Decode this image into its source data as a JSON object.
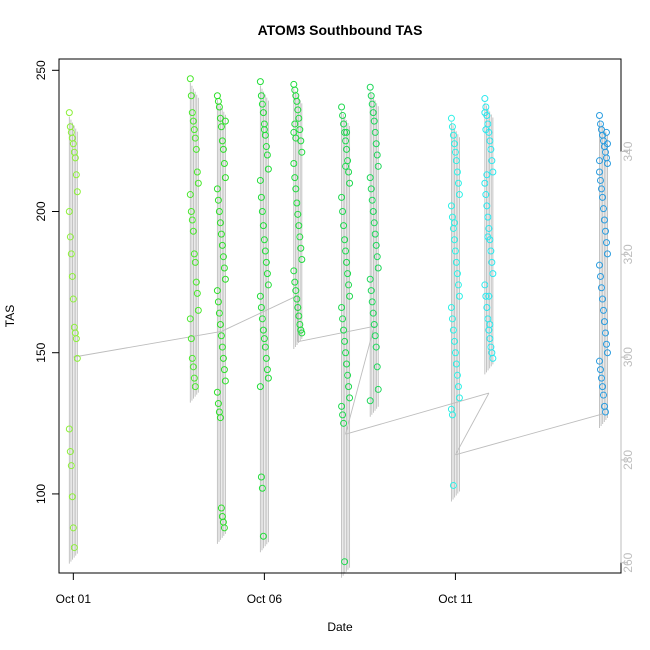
{
  "chart_data": {
    "type": "scatter",
    "title": "ATOM3 Southbound TAS",
    "xlabel": "Date",
    "ylabel": "TAS",
    "x_axis": {
      "type": "date",
      "ticks": [
        {
          "value": "2020-10-01",
          "label": "Oct 01"
        },
        {
          "value": "2020-10-06",
          "label": "Oct 06"
        },
        {
          "value": "2020-10-11",
          "label": "Oct 11"
        }
      ],
      "range": [
        "2020-09-30T15:00",
        "2020-10-15T08:00"
      ]
    },
    "y_axis": {
      "range": [
        72,
        254
      ],
      "ticks": [
        100,
        150,
        200,
        250
      ]
    },
    "y2_axis": {
      "range": [
        258,
        358
      ],
      "ticks": [
        260,
        280,
        300,
        320,
        340
      ],
      "color": "#bdbdbd"
    },
    "legend": "none",
    "grid": false,
    "marker": "open-circle",
    "color_scale": "green-cyan-blue by date",
    "secondary_line_color": "#bdbdbd",
    "series": [
      {
        "color": "#8df03a",
        "x": [
          "2020-10-01T00:00",
          "2020-10-01T00:00",
          "2020-10-01T00:00",
          "2020-10-01T00:00",
          "2020-10-01T00:00",
          "2020-10-01T00:00",
          "2020-10-01T00:00",
          "2020-10-01T00:00",
          "2020-10-01T00:00",
          "2020-10-01T00:00",
          "2020-10-01T00:00",
          "2020-10-01T00:00",
          "2020-10-01T00:00",
          "2020-10-01T00:00",
          "2020-10-01T00:00",
          "2020-10-01T00:00",
          "2020-10-01T00:00",
          "2020-10-01T00:00",
          "2020-10-01T00:00",
          "2020-10-01T00:00",
          "2020-10-01T00:00",
          "2020-10-01T00:00",
          "2020-10-01T00:00",
          "2020-10-01T00:00"
        ],
        "y": [
          235,
          230,
          228,
          226,
          224,
          221,
          219,
          213,
          207,
          200,
          191,
          185,
          177,
          169,
          159,
          157,
          155,
          148,
          123,
          115,
          110,
          99,
          88,
          81
        ]
      },
      {
        "color": "#4ae82d",
        "x": [
          "2020-10-04T04:00",
          "2020-10-04T04:00",
          "2020-10-04T04:00",
          "2020-10-04T04:00",
          "2020-10-04T04:00",
          "2020-10-04T04:00",
          "2020-10-04T04:00",
          "2020-10-04T04:00",
          "2020-10-04T04:00",
          "2020-10-04T04:00",
          "2020-10-04T04:00",
          "2020-10-04T04:00",
          "2020-10-04T04:00",
          "2020-10-04T04:00",
          "2020-10-04T04:00",
          "2020-10-04T04:00",
          "2020-10-04T04:00",
          "2020-10-04T04:00",
          "2020-10-04T04:00",
          "2020-10-04T04:00",
          "2020-10-04T04:00",
          "2020-10-04T04:00",
          "2020-10-04T04:00",
          "2020-10-04T04:00"
        ],
        "y": [
          247,
          241,
          235,
          232,
          229,
          226,
          222,
          214,
          210,
          206,
          200,
          197,
          193,
          185,
          182,
          175,
          171,
          165,
          162,
          155,
          148,
          145,
          141,
          138
        ]
      },
      {
        "color": "#2ee02a",
        "x": [
          "2020-10-04T21:00",
          "2020-10-04T21:00",
          "2020-10-04T21:00",
          "2020-10-04T21:00",
          "2020-10-04T21:00",
          "2020-10-04T21:00",
          "2020-10-04T21:00",
          "2020-10-04T21:00",
          "2020-10-04T21:00",
          "2020-10-04T21:00",
          "2020-10-04T21:00",
          "2020-10-04T21:00",
          "2020-10-04T21:00",
          "2020-10-04T21:00",
          "2020-10-04T21:00",
          "2020-10-04T21:00",
          "2020-10-04T21:00",
          "2020-10-04T21:00",
          "2020-10-04T21:00",
          "2020-10-04T21:00",
          "2020-10-04T21:00",
          "2020-10-04T21:00",
          "2020-10-04T21:00",
          "2020-10-04T21:00",
          "2020-10-04T21:00",
          "2020-10-04T21:00",
          "2020-10-04T21:00",
          "2020-10-04T21:00",
          "2020-10-04T21:00",
          "2020-10-04T21:00",
          "2020-10-04T21:00",
          "2020-10-04T21:00",
          "2020-10-04T21:00",
          "2020-10-04T21:00",
          "2020-10-04T21:00",
          "2020-10-04T21:00"
        ],
        "y": [
          241,
          239,
          237,
          233,
          230,
          225,
          222,
          217,
          212,
          208,
          204,
          200,
          196,
          192,
          188,
          184,
          180,
          176,
          172,
          168,
          164,
          160,
          156,
          152,
          148,
          144,
          140,
          136,
          132,
          129,
          127,
          95,
          92,
          90,
          88,
          232
        ]
      },
      {
        "color": "#22de39",
        "x": [
          "2020-10-06T00:00",
          "2020-10-06T00:00",
          "2020-10-06T00:00",
          "2020-10-06T00:00",
          "2020-10-06T00:00",
          "2020-10-06T00:00",
          "2020-10-06T00:00",
          "2020-10-06T00:00",
          "2020-10-06T00:00",
          "2020-10-06T00:00",
          "2020-10-06T00:00",
          "2020-10-06T00:00",
          "2020-10-06T00:00",
          "2020-10-06T00:00",
          "2020-10-06T00:00",
          "2020-10-06T00:00",
          "2020-10-06T00:00",
          "2020-10-06T00:00",
          "2020-10-06T00:00",
          "2020-10-06T00:00",
          "2020-10-06T00:00",
          "2020-10-06T00:00",
          "2020-10-06T00:00",
          "2020-10-06T00:00",
          "2020-10-06T00:00",
          "2020-10-06T00:00",
          "2020-10-06T00:00",
          "2020-10-06T00:00",
          "2020-10-06T00:00",
          "2020-10-06T00:00",
          "2020-10-06T00:00",
          "2020-10-06T00:00"
        ],
        "y": [
          246,
          241,
          238,
          235,
          231,
          227,
          223,
          220,
          215,
          211,
          205,
          200,
          195,
          190,
          186,
          182,
          178,
          174,
          170,
          166,
          162,
          158,
          155,
          152,
          148,
          144,
          141,
          138,
          106,
          102,
          85,
          229
        ]
      },
      {
        "color": "#20dc3e",
        "x": [
          "2020-10-06T21:00",
          "2020-10-06T21:00",
          "2020-10-06T21:00",
          "2020-10-06T21:00",
          "2020-10-06T21:00",
          "2020-10-06T21:00",
          "2020-10-06T21:00",
          "2020-10-06T21:00",
          "2020-10-06T21:00",
          "2020-10-06T21:00",
          "2020-10-06T21:00",
          "2020-10-06T21:00",
          "2020-10-06T21:00",
          "2020-10-06T21:00",
          "2020-10-06T21:00",
          "2020-10-06T21:00",
          "2020-10-06T21:00",
          "2020-10-06T21:00",
          "2020-10-06T21:00",
          "2020-10-06T21:00",
          "2020-10-06T21:00",
          "2020-10-06T21:00",
          "2020-10-06T21:00",
          "2020-10-06T21:00",
          "2020-10-06T21:00",
          "2020-10-06T21:00",
          "2020-10-06T21:00",
          "2020-10-06T21:00",
          "2020-10-06T21:00",
          "2020-10-06T21:00"
        ],
        "y": [
          245,
          243,
          241,
          239,
          236,
          233,
          229,
          225,
          221,
          217,
          212,
          208,
          203,
          199,
          195,
          191,
          187,
          183,
          179,
          175,
          172,
          169,
          166,
          163,
          160,
          158,
          157,
          228,
          231,
          226
        ]
      },
      {
        "color": "#1fd94f",
        "x": [
          "2020-10-08T03:00",
          "2020-10-08T03:00",
          "2020-10-08T03:00",
          "2020-10-08T03:00",
          "2020-10-08T03:00",
          "2020-10-08T03:00",
          "2020-10-08T03:00",
          "2020-10-08T03:00",
          "2020-10-08T03:00",
          "2020-10-08T03:00",
          "2020-10-08T03:00",
          "2020-10-08T03:00",
          "2020-10-08T03:00",
          "2020-10-08T03:00",
          "2020-10-08T03:00",
          "2020-10-08T03:00",
          "2020-10-08T03:00",
          "2020-10-08T03:00",
          "2020-10-08T03:00",
          "2020-10-08T03:00",
          "2020-10-08T03:00",
          "2020-10-08T03:00",
          "2020-10-08T03:00",
          "2020-10-08T03:00",
          "2020-10-08T03:00",
          "2020-10-08T03:00",
          "2020-10-08T03:00",
          "2020-10-08T03:00",
          "2020-10-08T03:00",
          "2020-10-08T03:00",
          "2020-10-08T03:00",
          "2020-10-08T03:00",
          "2020-10-08T03:00"
        ],
        "y": [
          237,
          234,
          231,
          228,
          225,
          222,
          218,
          214,
          210,
          205,
          200,
          195,
          190,
          186,
          182,
          178,
          174,
          170,
          166,
          162,
          158,
          154,
          150,
          146,
          142,
          138,
          134,
          131,
          128,
          125,
          76,
          216,
          228
        ]
      },
      {
        "color": "#1fd75a",
        "x": [
          "2020-10-08T21:00",
          "2020-10-08T21:00",
          "2020-10-08T21:00",
          "2020-10-08T21:00",
          "2020-10-08T21:00",
          "2020-10-08T21:00",
          "2020-10-08T21:00",
          "2020-10-08T21:00",
          "2020-10-08T21:00",
          "2020-10-08T21:00",
          "2020-10-08T21:00",
          "2020-10-08T21:00",
          "2020-10-08T21:00",
          "2020-10-08T21:00",
          "2020-10-08T21:00",
          "2020-10-08T21:00",
          "2020-10-08T21:00",
          "2020-10-08T21:00",
          "2020-10-08T21:00",
          "2020-10-08T21:00",
          "2020-10-08T21:00",
          "2020-10-08T21:00",
          "2020-10-08T21:00",
          "2020-10-08T21:00",
          "2020-10-08T21:00",
          "2020-10-08T21:00",
          "2020-10-08T21:00",
          "2020-10-08T21:00"
        ],
        "y": [
          244,
          241,
          238,
          235,
          232,
          228,
          224,
          220,
          216,
          212,
          208,
          204,
          200,
          196,
          192,
          188,
          184,
          180,
          176,
          172,
          168,
          164,
          160,
          156,
          152,
          145,
          137,
          133
        ]
      },
      {
        "color": "#2ef0e6",
        "x": [
          "2020-10-11T00:00",
          "2020-10-11T00:00",
          "2020-10-11T00:00",
          "2020-10-11T00:00",
          "2020-10-11T00:00",
          "2020-10-11T00:00",
          "2020-10-11T00:00",
          "2020-10-11T00:00",
          "2020-10-11T00:00",
          "2020-10-11T00:00",
          "2020-10-11T00:00",
          "2020-10-11T00:00",
          "2020-10-11T00:00",
          "2020-10-11T00:00",
          "2020-10-11T00:00",
          "2020-10-11T00:00",
          "2020-10-11T00:00",
          "2020-10-11T00:00",
          "2020-10-11T00:00",
          "2020-10-11T00:00",
          "2020-10-11T00:00",
          "2020-10-11T00:00",
          "2020-10-11T00:00",
          "2020-10-11T00:00",
          "2020-10-11T00:00",
          "2020-10-11T00:00",
          "2020-10-11T00:00",
          "2020-10-11T00:00",
          "2020-10-11T00:00",
          "2020-10-11T00:00",
          "2020-10-11T00:00"
        ],
        "y": [
          233,
          230,
          227,
          224,
          221,
          218,
          214,
          210,
          206,
          202,
          198,
          194,
          190,
          186,
          182,
          178,
          174,
          170,
          166,
          162,
          158,
          154,
          150,
          146,
          142,
          138,
          134,
          130,
          128,
          103,
          196
        ]
      },
      {
        "color": "#2ce8ee",
        "x": [
          "2020-10-11T21:00",
          "2020-10-11T21:00",
          "2020-10-11T21:00",
          "2020-10-11T21:00",
          "2020-10-11T21:00",
          "2020-10-11T21:00",
          "2020-10-11T21:00",
          "2020-10-11T21:00",
          "2020-10-11T21:00",
          "2020-10-11T21:00",
          "2020-10-11T21:00",
          "2020-10-11T21:00",
          "2020-10-11T21:00",
          "2020-10-11T21:00",
          "2020-10-11T21:00",
          "2020-10-11T21:00",
          "2020-10-11T21:00",
          "2020-10-11T21:00",
          "2020-10-11T21:00",
          "2020-10-11T21:00",
          "2020-10-11T21:00",
          "2020-10-11T21:00",
          "2020-10-11T21:00",
          "2020-10-11T21:00",
          "2020-10-11T21:00",
          "2020-10-11T21:00",
          "2020-10-11T21:00",
          "2020-10-11T21:00",
          "2020-10-11T21:00",
          "2020-10-11T21:00",
          "2020-10-11T21:00",
          "2020-10-11T21:00",
          "2020-10-11T21:00"
        ],
        "y": [
          240,
          237,
          234,
          231,
          228,
          225,
          222,
          218,
          214,
          210,
          206,
          202,
          198,
          194,
          190,
          186,
          182,
          178,
          174,
          170,
          166,
          162,
          158,
          155,
          152,
          150,
          148,
          235,
          229,
          213,
          191,
          170,
          160
        ]
      },
      {
        "color": "#2a9de0",
        "x": [
          "2020-10-14T21:00",
          "2020-10-14T21:00",
          "2020-10-14T21:00",
          "2020-10-14T21:00",
          "2020-10-14T21:00",
          "2020-10-14T21:00",
          "2020-10-14T21:00",
          "2020-10-14T21:00",
          "2020-10-14T21:00",
          "2020-10-14T21:00",
          "2020-10-14T21:00",
          "2020-10-14T21:00",
          "2020-10-14T21:00",
          "2020-10-14T21:00",
          "2020-10-14T21:00",
          "2020-10-14T21:00",
          "2020-10-14T21:00",
          "2020-10-14T21:00",
          "2020-10-14T21:00",
          "2020-10-14T21:00",
          "2020-10-14T21:00",
          "2020-10-14T21:00",
          "2020-10-14T21:00",
          "2020-10-14T21:00",
          "2020-10-14T21:00",
          "2020-10-14T21:00",
          "2020-10-14T21:00",
          "2020-10-14T21:00",
          "2020-10-14T21:00",
          "2020-10-14T21:00",
          "2020-10-14T21:00",
          "2020-10-14T21:00",
          "2020-10-14T21:00",
          "2020-10-14T21:00",
          "2020-10-14T21:00",
          "2020-10-14T21:00",
          "2020-10-14T21:00"
        ],
        "y": [
          234,
          231,
          229,
          227,
          225,
          223,
          221,
          219,
          217,
          214,
          211,
          208,
          205,
          201,
          197,
          193,
          189,
          185,
          181,
          177,
          173,
          169,
          165,
          161,
          157,
          153,
          150,
          147,
          144,
          141,
          138,
          135,
          131,
          129,
          228,
          224,
          218
        ]
      }
    ]
  }
}
